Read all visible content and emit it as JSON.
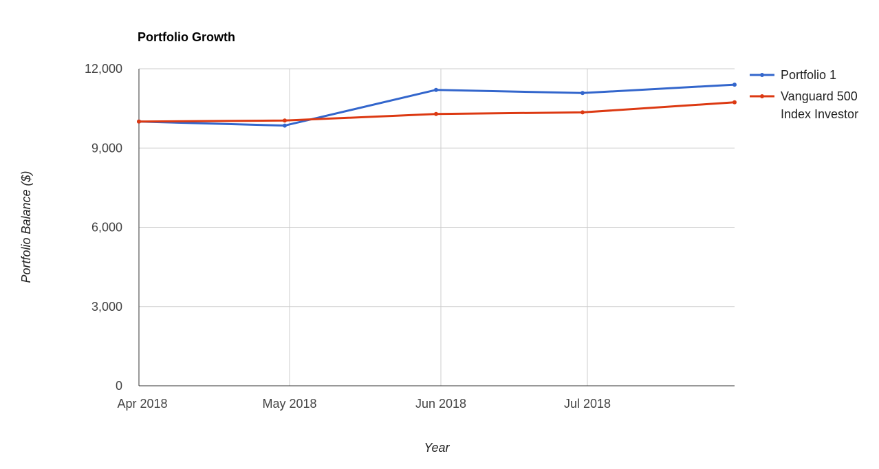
{
  "chart_data": {
    "type": "line",
    "title": "Portfolio Growth",
    "xlabel": "Year",
    "ylabel": "Portfolio Balance ($)",
    "ylim": [
      0,
      12000
    ],
    "yticks": [
      0,
      3000,
      6000,
      9000,
      12000
    ],
    "ytick_labels": [
      "0",
      "3,000",
      "6,000",
      "9,000",
      "12,000"
    ],
    "x": [
      "2018-04",
      "2018-05",
      "2018-06",
      "2018-07",
      "2018-08"
    ],
    "xtick_labels": [
      "Apr 2018",
      "May 2018",
      "Jun 2018",
      "Jul 2018"
    ],
    "grid": true,
    "legend_position": "right",
    "series": [
      {
        "name": "Portfolio 1",
        "color": "#3366cc",
        "values": [
          10000,
          9850,
          11200,
          11080,
          11400
        ]
      },
      {
        "name": "Vanguard 500 Index Investor",
        "name_lines": [
          "Vanguard 500",
          "Index Investor"
        ],
        "color": "#dc3912",
        "values": [
          10000,
          10040,
          10290,
          10350,
          10730
        ]
      }
    ]
  }
}
